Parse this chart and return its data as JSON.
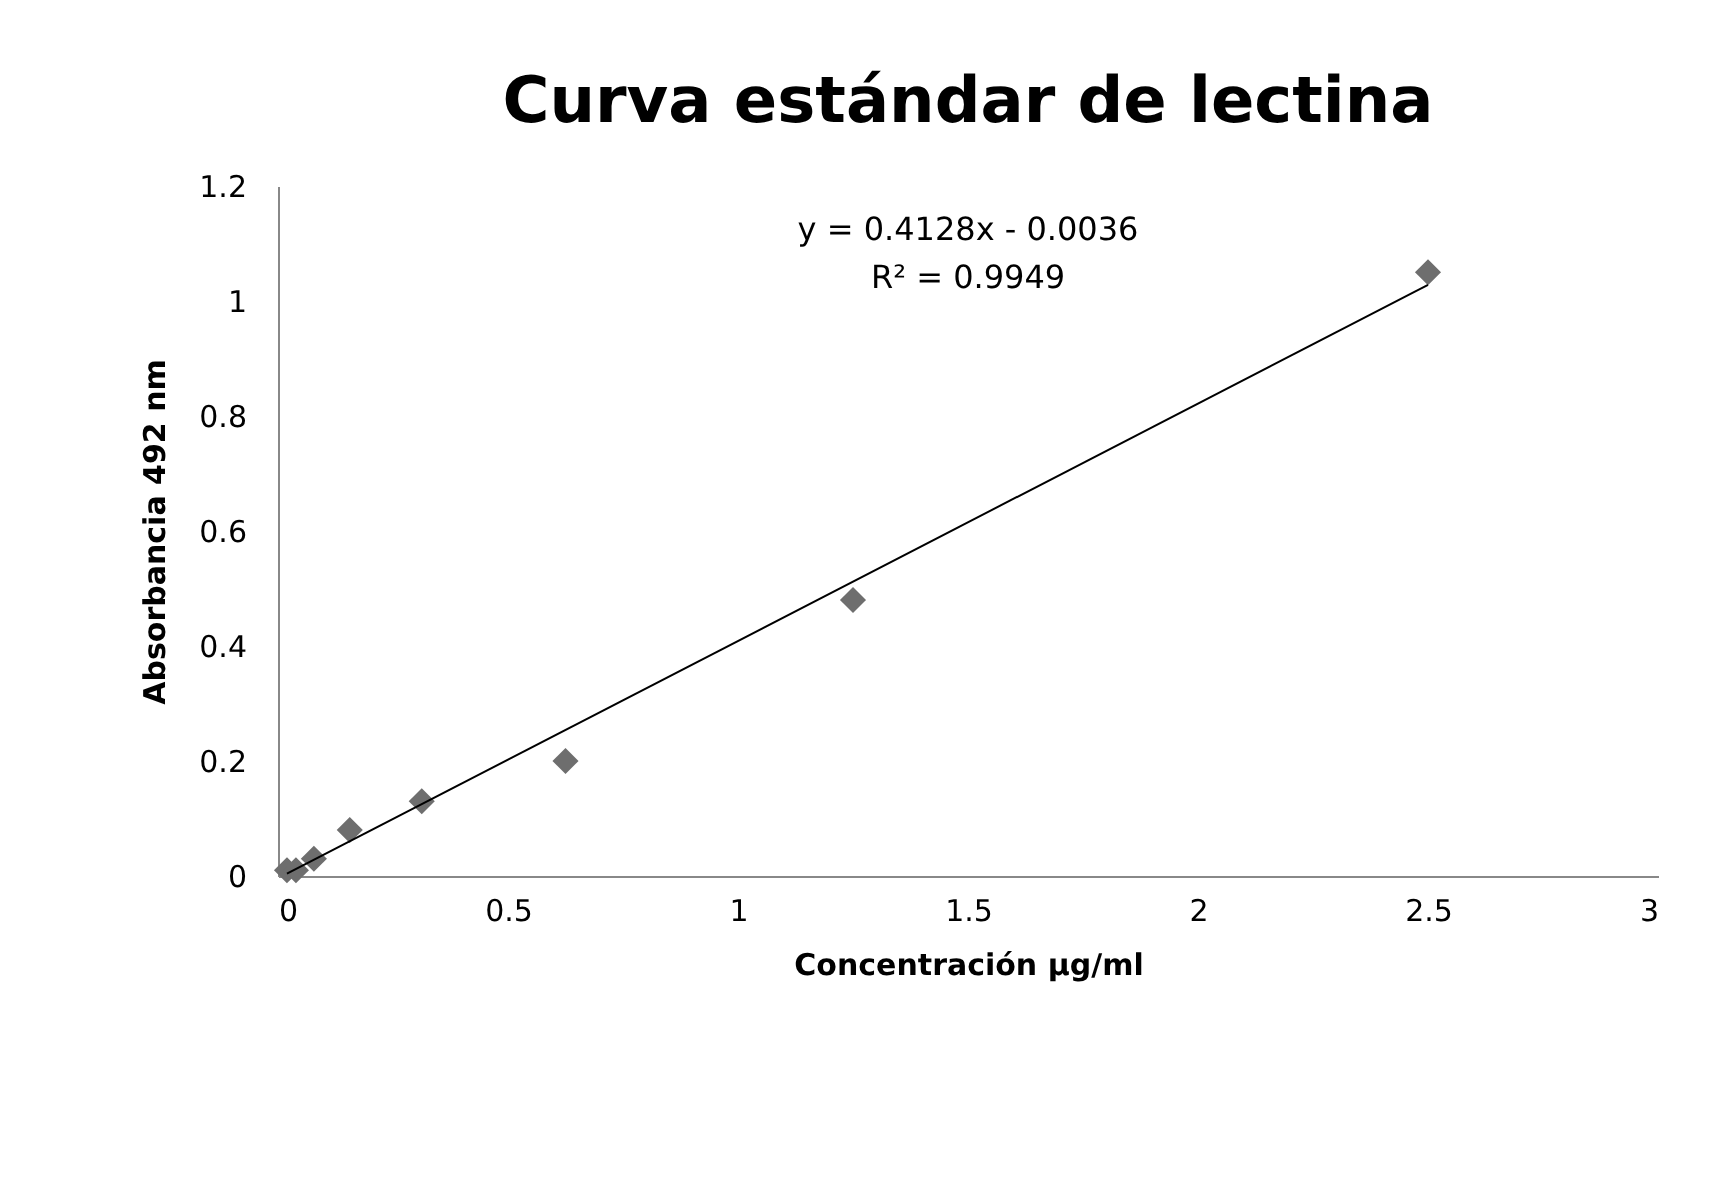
{
  "chart_data": {
    "type": "scatter",
    "title": "Curva estándar de lectina",
    "xlabel": "Concentración µg/ml",
    "ylabel": "Absorbancia 492 nm",
    "series": [
      {
        "color": "#6e6e6e",
        "marker": "diamond",
        "x": [
          0.0195,
          0.039,
          0.078,
          0.156,
          0.3125,
          0.625,
          1.25,
          2.5
        ],
        "values": [
          0.01,
          0.01,
          0.03,
          0.08,
          0.13,
          0.2,
          0.48,
          1.05
        ]
      },
      {
        "type": "line",
        "color": "#000000",
        "line_style": "solid",
        "x": [
          0.0195,
          2.5
        ],
        "values": [
          0.004,
          1.028
        ]
      }
    ],
    "annotations": [
      "y = 0.4128x - 0.0036",
      "R² = 0.9949"
    ],
    "xlim": [
      0,
      3
    ],
    "xticks": [
      0,
      0.5,
      1,
      1.5,
      2,
      2.5,
      3
    ],
    "ylim": [
      0,
      1.2
    ],
    "yticks": [
      0,
      0.2,
      0.4,
      0.6,
      0.8,
      1,
      1.2
    ],
    "grid": false
  }
}
